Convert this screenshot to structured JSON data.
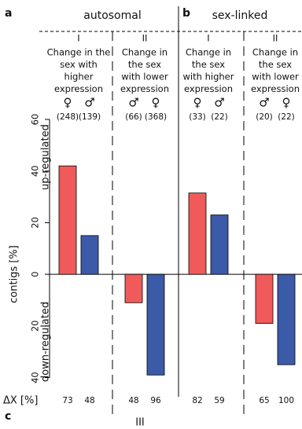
{
  "chart_data": {
    "type": "bar",
    "panel_labels": [
      "a",
      "b",
      "c"
    ],
    "y_label": "contigs [%]",
    "region_labels": [
      "up-regulated",
      "down-regulated"
    ],
    "ylim": [
      -45,
      60
    ],
    "yticks": [
      60,
      40,
      20,
      0,
      {
        "value": -20,
        "label": "20"
      },
      {
        "value": -40,
        "label": "40"
      }
    ],
    "colors": [
      "#f05a5a",
      "#3b5aa8"
    ],
    "delta_label": "ΔX [%]",
    "footer_label": "III",
    "panels": [
      {
        "title": "autosomal",
        "groups": [
          {
            "numeral": "I",
            "description": [
              "Change in the",
              "sex with",
              "higher",
              "expression"
            ],
            "symbols": [
              "♀",
              "♂"
            ],
            "counts": [
              "(248)",
              "(139)"
            ],
            "values": [
              42,
              15
            ],
            "delta_x": [
              73,
              48
            ]
          },
          {
            "numeral": "II",
            "description": [
              "Change in",
              "the sex",
              "with lower",
              "expression"
            ],
            "symbols": [
              "♂",
              "♀"
            ],
            "counts": [
              "(66)",
              "(368)"
            ],
            "values": [
              -11,
              -39
            ],
            "delta_x": [
              48,
              96
            ]
          }
        ]
      },
      {
        "title": "sex-linked",
        "groups": [
          {
            "numeral": "I",
            "description": [
              "Change in",
              "the sex",
              "with  higher",
              "expression"
            ],
            "symbols": [
              "♀",
              "♂"
            ],
            "counts": [
              "(33)",
              "(22)"
            ],
            "values": [
              31.5,
              23
            ],
            "delta_x": [
              82,
              59
            ]
          },
          {
            "numeral": "II",
            "description": [
              "Change in",
              "the sex",
              "with lower",
              "expression"
            ],
            "symbols": [
              "♂",
              "♀"
            ],
            "counts": [
              "(20)",
              "(22)"
            ],
            "values": [
              -19,
              -35
            ],
            "delta_x": [
              65,
              100
            ]
          }
        ]
      }
    ]
  }
}
